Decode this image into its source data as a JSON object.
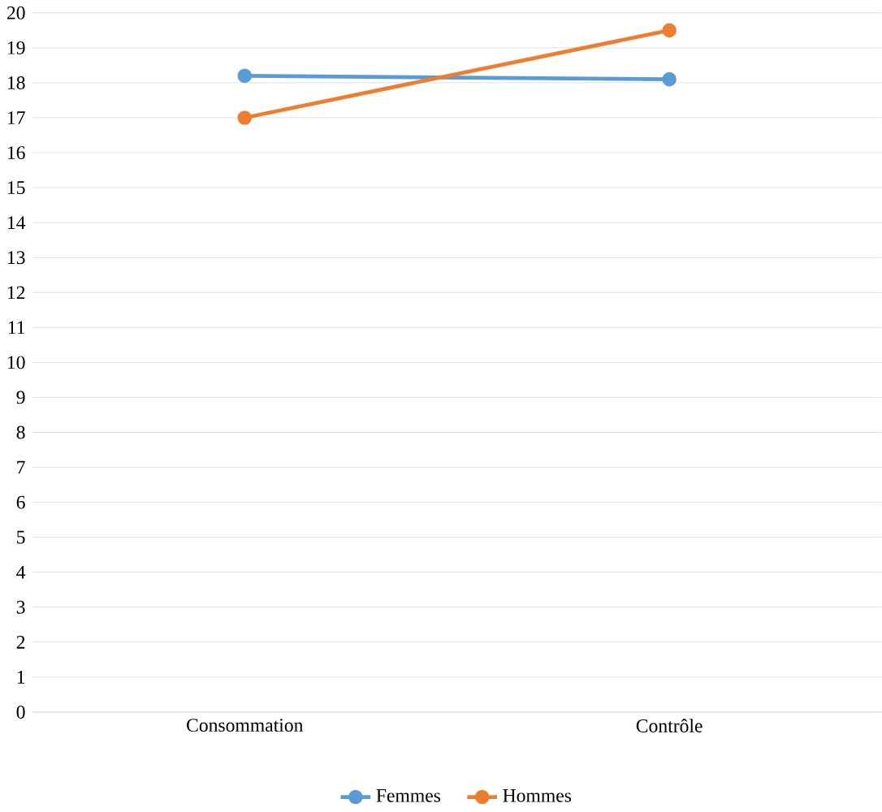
{
  "chart_data": {
    "type": "line",
    "categories": [
      "Consommation",
      "Contrôle"
    ],
    "series": [
      {
        "name": "Femmes",
        "color": "#5b9bd5",
        "values": [
          18.2,
          18.1
        ]
      },
      {
        "name": "Hommes",
        "color": "#ed7d31",
        "values": [
          17.0,
          19.5
        ]
      }
    ],
    "ylim": [
      0,
      20
    ],
    "yticks": [
      0,
      1,
      2,
      3,
      4,
      5,
      6,
      7,
      8,
      9,
      10,
      11,
      12,
      13,
      14,
      15,
      16,
      17,
      18,
      19,
      20
    ],
    "grid": "y",
    "legend": "bottom",
    "marker": "circle",
    "line_style": "solid"
  }
}
